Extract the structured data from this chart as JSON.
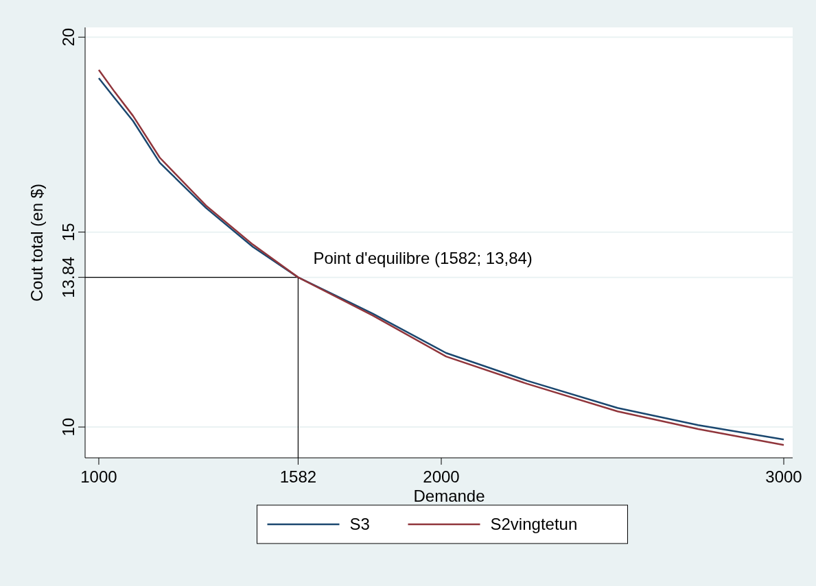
{
  "chart_data": {
    "type": "line",
    "xlabel": "Demande",
    "ylabel": "Cout total (en $)",
    "xlim": [
      960,
      3026
    ],
    "ylim": [
      9.21,
      20.25
    ],
    "xticks": [
      1000,
      1582,
      2000,
      3000
    ],
    "yticks": [
      10,
      13.84,
      15,
      20
    ],
    "grid": "y",
    "legend": "bottom",
    "ref_lines": [
      {
        "axis": "x",
        "value": 1582,
        "color": "#000000"
      },
      {
        "axis": "y",
        "value": 13.84,
        "color": "#000000"
      }
    ],
    "annotations": [
      {
        "text": "Point d'equilibre (1582; 13,84)",
        "x": 1582,
        "y": 13.84
      }
    ],
    "series": [
      {
        "name": "S3",
        "color": "#1a476f",
        "x": [
          1000,
          1046,
          1100,
          1178,
          1313,
          1450,
          1582,
          1800,
          2014,
          2250,
          2515,
          2750,
          3000
        ],
        "values": [
          18.95,
          18.44,
          17.85,
          16.78,
          15.62,
          14.62,
          13.84,
          12.91,
          11.9,
          11.19,
          10.49,
          10.05,
          9.68
        ]
      },
      {
        "name": "S2vingtetun",
        "color": "#90353b",
        "x": [
          1000,
          1046,
          1100,
          1178,
          1313,
          1450,
          1582,
          1800,
          2014,
          2250,
          2515,
          2750,
          3000
        ],
        "values": [
          19.16,
          18.6,
          17.98,
          16.91,
          15.68,
          14.68,
          13.84,
          12.86,
          11.81,
          11.11,
          10.4,
          9.95,
          9.54
        ]
      }
    ]
  }
}
